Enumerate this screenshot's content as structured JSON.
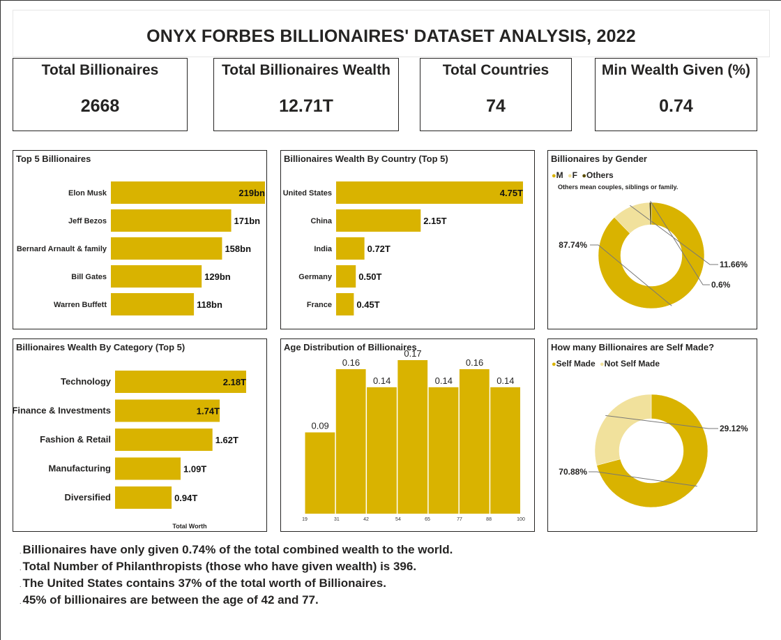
{
  "title": "ONYX FORBES BILLIONAIRES' DATASET ANALYSIS, 2022",
  "kpis": [
    {
      "label": "Total Billionaires",
      "value": "2668"
    },
    {
      "label": "Total Billionaires Wealth",
      "value": "12.71T"
    },
    {
      "label": "Total Countries",
      "value": "74"
    },
    {
      "label": "Min Wealth Given (%)",
      "value": "0.74"
    }
  ],
  "colors": {
    "primary": "#d9b300",
    "light": "#f1e19c",
    "dark": "#5a4c00",
    "text": "#252423"
  },
  "chart_data": [
    {
      "type": "bar",
      "orientation": "horizontal",
      "title": "Top 5 Billionaires",
      "categories": [
        "Elon Musk",
        "Jeff Bezos",
        "Bernard Arnault & family",
        "Bill Gates",
        "Warren Buffett"
      ],
      "values": [
        219,
        171,
        158,
        129,
        118
      ],
      "data_labels": [
        "219bn",
        "171bn",
        "158bn",
        "129bn",
        "118bn"
      ],
      "xlim": [
        0,
        219
      ]
    },
    {
      "type": "bar",
      "orientation": "horizontal",
      "title": "Billionaires Wealth By Country (Top 5)",
      "categories": [
        "United States",
        "China",
        "India",
        "Germany",
        "France"
      ],
      "values": [
        4.75,
        2.15,
        0.72,
        0.5,
        0.45
      ],
      "data_labels": [
        "4.75T",
        "2.15T",
        "0.72T",
        "0.50T",
        "0.45T"
      ],
      "xlim": [
        0,
        4.75
      ]
    },
    {
      "type": "pie",
      "donut": true,
      "title": "Billionaires by Gender",
      "legend": [
        "M",
        "F",
        "Others"
      ],
      "legend_placement": "top-left",
      "note": "Others mean couples, siblings or family.",
      "slices": [
        {
          "name": "M",
          "value": 87.74,
          "label": "87.74%",
          "color": "#d9b300"
        },
        {
          "name": "F",
          "value": 11.66,
          "label": "11.66%",
          "color": "#f1e19c"
        },
        {
          "name": "Others",
          "value": 0.6,
          "label": "0.6%",
          "color": "#5a4c00"
        }
      ]
    },
    {
      "type": "bar",
      "orientation": "horizontal",
      "title": "Billionaires Wealth By Category (Top 5)",
      "categories": [
        "Technology",
        "Finance & Investments",
        "Fashion & Retail",
        "Manufacturing",
        "Diversified"
      ],
      "values": [
        2.18,
        1.74,
        1.62,
        1.09,
        0.94
      ],
      "data_labels": [
        "2.18T",
        "1.74T",
        "1.62T",
        "1.09T",
        "0.94T"
      ],
      "xlabel": "Total Worth",
      "xlim": [
        0,
        2.18
      ]
    },
    {
      "type": "bar",
      "title": "Age Distribution of Billionaires",
      "histogram": true,
      "bin_edges": [
        19,
        31,
        42,
        54,
        65,
        77,
        88,
        100
      ],
      "tick_labels": [
        "19",
        "31",
        "42",
        "54",
        "65",
        "77",
        "88",
        "100"
      ],
      "values": [
        0.09,
        0.16,
        0.14,
        0.17,
        0.14,
        0.16,
        0.14
      ],
      "data_labels": [
        "0.09",
        "0.16",
        "0.14",
        "0.17",
        "0.14",
        "0.16",
        "0.14"
      ],
      "ylim": [
        0,
        0.17
      ]
    },
    {
      "type": "pie",
      "donut": true,
      "title": "How many Billionaires are Self Made?",
      "legend": [
        "Self Made",
        "Not Self Made"
      ],
      "legend_placement": "top-left",
      "slices": [
        {
          "name": "Self Made",
          "value": 70.88,
          "label": "70.88%",
          "color": "#d9b300"
        },
        {
          "name": "Not Self Made",
          "value": 29.12,
          "label": "29.12%",
          "color": "#f1e19c"
        }
      ]
    }
  ],
  "insights": [
    "Billionaires have only given 0.74% of the total combined wealth to the world.",
    "Total Number of Philanthropists (those who have given wealth) is 396.",
    "The United States contains 37% of the total worth of Billionaires.",
    "45% of billionaires are between the age of 42 and 77."
  ],
  "bullet_char": "."
}
